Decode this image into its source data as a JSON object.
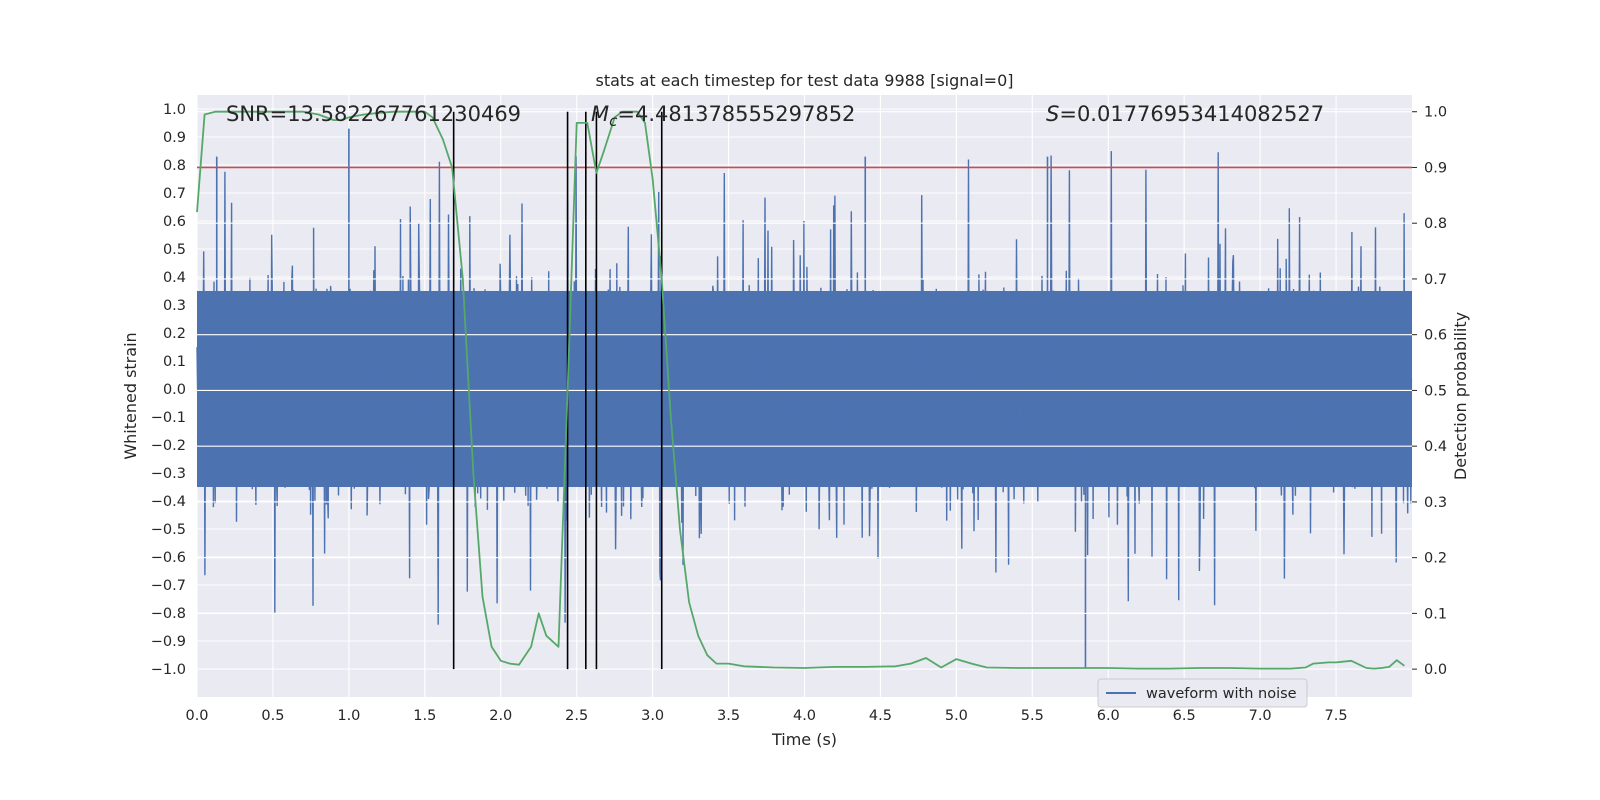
{
  "chart_data": {
    "type": "line",
    "title": "stats at each timestep for test data 9988 [signal=0]",
    "xlabel": "Time (s)",
    "ylabel_left": "Whitened strain",
    "ylabel_right": "Detection probability",
    "xlim": [
      0.0,
      8.0
    ],
    "ylim_left": [
      -1.1,
      1.05
    ],
    "ylim_right": [
      -0.05,
      1.03
    ],
    "x_ticks": [
      "0.0",
      "0.5",
      "1.0",
      "1.5",
      "2.0",
      "2.5",
      "3.0",
      "3.5",
      "4.0",
      "4.5",
      "5.0",
      "5.5",
      "6.0",
      "6.5",
      "7.0",
      "7.5"
    ],
    "y_left_ticks": [
      "1.0",
      "0.9",
      "0.8",
      "0.7",
      "0.6",
      "0.5",
      "0.4",
      "0.3",
      "0.2",
      "0.1",
      "0.0",
      "-0.1",
      "-0.2",
      "-0.3",
      "-0.4",
      "-0.5",
      "-0.6",
      "-0.7",
      "-0.8",
      "-0.9",
      "-1.0"
    ],
    "y_right_ticks": [
      "1.0",
      "0.9",
      "0.8",
      "0.7",
      "0.6",
      "0.5",
      "0.4",
      "0.3",
      "0.2",
      "0.1",
      "0.0"
    ],
    "grid": true,
    "annotations": {
      "snr": "SNR=13.582267761230469",
      "mc_symbol": "M",
      "mc_sub": "c",
      "mc_value": "=4.481378555297852",
      "s_symbol": "S",
      "s_value": "=0.01776953414082527"
    },
    "threshold_line": {
      "y_right": 0.9,
      "color": "#c44e52"
    },
    "vertical_lines_x": [
      1.69,
      2.44,
      2.56,
      2.63,
      3.06
    ],
    "vertical_line_range_right": [
      0.0,
      1.0
    ],
    "waveform": {
      "name": "waveform with noise",
      "color": "#4c72b0",
      "sample_count": 2000,
      "core_amplitude": 0.35,
      "max_peak": 0.95
    },
    "detection_probability": {
      "color": "#55a868",
      "x": [
        0.0,
        0.05,
        0.12,
        0.2,
        0.3,
        0.4,
        0.5,
        0.6,
        0.7,
        0.8,
        0.9,
        0.95,
        1.0,
        1.1,
        1.2,
        1.3,
        1.4,
        1.5,
        1.55,
        1.62,
        1.68,
        1.75,
        1.82,
        1.88,
        1.94,
        2.0,
        2.06,
        2.12,
        2.2,
        2.25,
        2.3,
        2.38,
        2.44,
        2.5,
        2.57,
        2.63,
        2.68,
        2.75,
        2.8,
        2.9,
        2.95,
        3.0,
        3.06,
        3.12,
        3.18,
        3.24,
        3.3,
        3.36,
        3.42,
        3.5,
        3.6,
        3.8,
        4.0,
        4.2,
        4.4,
        4.6,
        4.7,
        4.8,
        4.9,
        5.0,
        5.1,
        5.2,
        5.4,
        5.6,
        5.8,
        6.0,
        6.2,
        6.4,
        6.6,
        6.8,
        7.0,
        7.2,
        7.3,
        7.35,
        7.45,
        7.5,
        7.6,
        7.7,
        7.75,
        7.8,
        7.85,
        7.9,
        7.95
      ],
      "values": [
        0.82,
        0.995,
        1.0,
        1.0,
        1.0,
        1.0,
        1.0,
        1.0,
        1.0,
        0.995,
        0.985,
        0.985,
        0.99,
        0.995,
        0.998,
        1.0,
        1.0,
        1.0,
        0.99,
        0.95,
        0.9,
        0.7,
        0.35,
        0.13,
        0.04,
        0.015,
        0.01,
        0.008,
        0.04,
        0.1,
        0.06,
        0.04,
        0.5,
        0.98,
        0.98,
        0.89,
        0.93,
        0.99,
        1.0,
        1.0,
        0.98,
        0.88,
        0.7,
        0.45,
        0.25,
        0.12,
        0.06,
        0.025,
        0.01,
        0.01,
        0.005,
        0.003,
        0.002,
        0.004,
        0.004,
        0.005,
        0.01,
        0.02,
        0.003,
        0.018,
        0.01,
        0.003,
        0.002,
        0.002,
        0.002,
        0.002,
        0.001,
        0.001,
        0.002,
        0.002,
        0.001,
        0.001,
        0.003,
        0.01,
        0.012,
        0.012,
        0.015,
        0.002,
        0.001,
        0.002,
        0.004,
        0.016,
        0.006
      ]
    }
  }
}
